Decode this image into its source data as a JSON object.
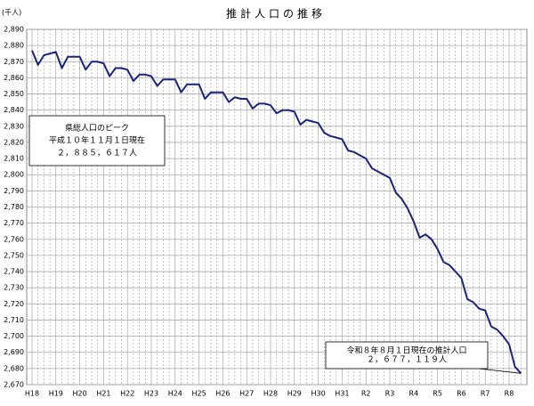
{
  "chart_data": {
    "type": "line",
    "title": "推計人口の推移",
    "y_label": "(千人)",
    "categories": [
      "H18",
      null,
      null,
      null,
      "H19",
      null,
      null,
      null,
      "H20",
      null,
      null,
      null,
      "H21",
      null,
      null,
      null,
      "H22",
      null,
      null,
      null,
      "H23",
      null,
      null,
      null,
      "H24",
      null,
      null,
      null,
      "H25",
      null,
      null,
      null,
      "H26",
      null,
      null,
      null,
      "H27",
      null,
      null,
      null,
      "H28",
      null,
      null,
      null,
      "H29",
      null,
      null,
      null,
      "H30",
      null,
      null,
      null,
      "H31",
      null,
      null,
      null,
      "R2",
      null,
      null,
      null,
      "R3",
      null,
      null,
      null,
      "R4",
      null,
      null,
      null,
      "R5",
      null,
      null,
      null,
      "R6",
      null,
      null,
      null,
      "R7",
      null,
      null,
      null,
      "R8",
      null,
      null
    ],
    "series": [
      {
        "color": "#1a237e",
        "values": [
          2877,
          2868,
          2874,
          2875,
          2876,
          2866,
          2873,
          2873,
          2873,
          2865,
          2870,
          2870,
          2869,
          2861,
          2866,
          2866,
          2865,
          2858,
          2862,
          2862,
          2861,
          2855,
          2859,
          2859,
          2859,
          2851,
          2856,
          2856,
          2856,
          2847,
          2851,
          2851,
          2851,
          2845,
          2848,
          2847,
          2847,
          2841,
          2844,
          2844,
          2843,
          2838,
          2840,
          2840,
          2839,
          2831,
          2834,
          2833,
          2832,
          2826,
          2824,
          2823,
          2822,
          2815,
          2814,
          2812,
          2810,
          2804,
          2802,
          2800,
          2798,
          2789,
          2785,
          2779,
          2771,
          2761,
          2763,
          2760,
          2754,
          2746,
          2744,
          2740,
          2736,
          2723,
          2721,
          2717,
          2716,
          2706,
          2704,
          2700,
          2695,
          2681,
          2677
        ]
      }
    ],
    "ylim": [
      2670,
      2890
    ],
    "yticks": [
      {
        "value": 2670,
        "label": "2,670"
      },
      {
        "value": 2680,
        "label": "2,680"
      },
      {
        "value": 2690,
        "label": "2,690"
      },
      {
        "value": 2700,
        "label": "2,700"
      },
      {
        "value": 2710,
        "label": "2,710"
      },
      {
        "value": 2720,
        "label": "2,720"
      },
      {
        "value": 2730,
        "label": "2,730"
      },
      {
        "value": 2740,
        "label": "2,740"
      },
      {
        "value": 2750,
        "label": "2,750"
      },
      {
        "value": 2760,
        "label": "2,760"
      },
      {
        "value": 2770,
        "label": "2,770"
      },
      {
        "value": 2780,
        "label": "2,780"
      },
      {
        "value": 2790,
        "label": "2,790"
      },
      {
        "value": 2800,
        "label": "2,800"
      },
      {
        "value": 2810,
        "label": "2,810"
      },
      {
        "value": 2820,
        "label": "2,820"
      },
      {
        "value": 2830,
        "label": "2,830"
      },
      {
        "value": 2840,
        "label": "2,840"
      },
      {
        "value": 2850,
        "label": "2,850"
      },
      {
        "value": 2860,
        "label": "2,860"
      },
      {
        "value": 2870,
        "label": "2,870"
      },
      {
        "value": 2880,
        "label": "2,880"
      },
      {
        "value": 2890,
        "label": "2,890"
      }
    ],
    "grid": true,
    "annotations": [
      [
        "県総人口のピーク",
        "平成１０年１１月１日現在",
        "２，８８５，６１７人"
      ],
      [
        "令和８年８月１日現在の推計人口",
        "２，６７７，１１９人"
      ]
    ]
  }
}
